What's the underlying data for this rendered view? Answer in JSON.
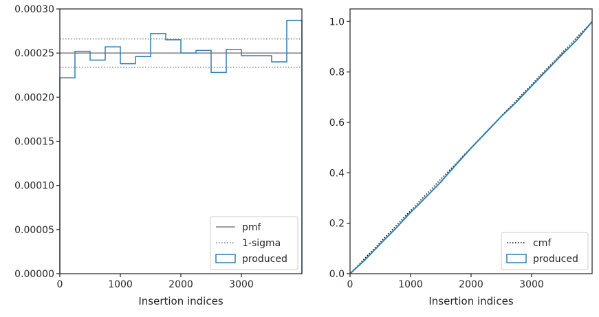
{
  "chart_data": [
    {
      "type": "histogram",
      "xlabel": "Insertion indices",
      "ylabel": "",
      "xlim": [
        0,
        4000
      ],
      "ylim": [
        0,
        0.0003
      ],
      "x_ticks": [
        {
          "value": 0,
          "label": "0"
        },
        {
          "value": 1000,
          "label": "1000"
        },
        {
          "value": 2000,
          "label": "2000"
        },
        {
          "value": 3000,
          "label": "3000"
        }
      ],
      "y_ticks": [
        {
          "value": 0,
          "label": "0.00000"
        },
        {
          "value": 5e-05,
          "label": "0.00005"
        },
        {
          "value": 0.0001,
          "label": "0.00010"
        },
        {
          "value": 0.00015,
          "label": "0.00015"
        },
        {
          "value": 0.0002,
          "label": "0.00020"
        },
        {
          "value": 0.00025,
          "label": "0.00025"
        },
        {
          "value": 0.0003,
          "label": "0.00030"
        }
      ],
      "grid": false,
      "legend_position": "bottom-right",
      "pmf": {
        "name": "pmf",
        "value": 0.00025,
        "color": "#808080"
      },
      "sigma": {
        "name": "1-sigma",
        "lower": 0.000234,
        "upper": 0.000266,
        "color": "#808080"
      },
      "series": [
        {
          "name": "produced",
          "color": "#2f7fb0",
          "bin_edges": [
            0,
            250,
            500,
            750,
            1000,
            1250,
            1500,
            1750,
            2000,
            2250,
            2500,
            2750,
            3000,
            3250,
            3500,
            3750,
            4000
          ],
          "values": [
            0.000222,
            0.000252,
            0.000242,
            0.000257,
            0.000238,
            0.000246,
            0.000272,
            0.000265,
            0.00025,
            0.000253,
            0.000228,
            0.000254,
            0.000247,
            0.000247,
            0.00024,
            0.000287
          ]
        }
      ]
    },
    {
      "type": "line",
      "xlabel": "Insertion indices",
      "ylabel": "",
      "xlim": [
        0,
        4000
      ],
      "ylim": [
        0,
        1.05
      ],
      "x_ticks": [
        {
          "value": 0,
          "label": "0"
        },
        {
          "value": 1000,
          "label": "1000"
        },
        {
          "value": 2000,
          "label": "2000"
        },
        {
          "value": 3000,
          "label": "3000"
        }
      ],
      "y_ticks": [
        {
          "value": 0,
          "label": "0.0"
        },
        {
          "value": 0.2,
          "label": "0.2"
        },
        {
          "value": 0.4,
          "label": "0.4"
        },
        {
          "value": 0.6,
          "label": "0.6"
        },
        {
          "value": 0.8,
          "label": "0.8"
        },
        {
          "value": 1.0,
          "label": "1.0"
        }
      ],
      "grid": false,
      "legend_position": "bottom-right",
      "series": [
        {
          "name": "cmf",
          "color": "#000000",
          "style": "dotted",
          "x": [
            0,
            4000
          ],
          "y": [
            0,
            1.0
          ]
        },
        {
          "name": "produced",
          "color": "#2f7fb0",
          "style": "step",
          "x": [
            0,
            250,
            500,
            750,
            1000,
            1250,
            1500,
            1750,
            2000,
            2250,
            2500,
            2750,
            3000,
            3250,
            3500,
            3750,
            4000
          ],
          "y": [
            0,
            0.0555,
            0.118,
            0.1785,
            0.243,
            0.3025,
            0.364,
            0.432,
            0.4983,
            0.5608,
            0.624,
            0.681,
            0.7445,
            0.8063,
            0.868,
            0.928,
            1.0
          ]
        }
      ]
    }
  ]
}
